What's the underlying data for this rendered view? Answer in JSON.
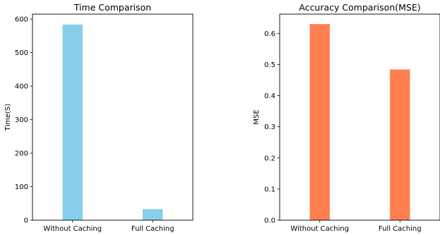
{
  "chart_data": [
    {
      "type": "bar",
      "title": "Time Comparison",
      "xlabel": "",
      "ylabel": "Time(S)",
      "categories": [
        "Without Caching",
        "Full Caching"
      ],
      "values": [
        584,
        33
      ],
      "ylim": [
        0,
        615
      ],
      "yticks": [
        0,
        100,
        200,
        300,
        400,
        500,
        600
      ],
      "ytick_labels": [
        "0",
        "100",
        "200",
        "300",
        "400",
        "500",
        "600"
      ],
      "color": "#87CEEB",
      "grid": false
    },
    {
      "type": "bar",
      "title": "Accuracy Comparison(MSE)",
      "xlabel": "",
      "ylabel": "MSE",
      "categories": [
        "Without Caching",
        "Full Caching"
      ],
      "values": [
        0.63,
        0.484
      ],
      "ylim": [
        0,
        0.662
      ],
      "yticks": [
        0.0,
        0.1,
        0.2,
        0.3,
        0.4,
        0.5,
        0.6
      ],
      "ytick_labels": [
        "0.0",
        "0.1",
        "0.2",
        "0.3",
        "0.4",
        "0.5",
        "0.6"
      ],
      "color": "#FF7F50",
      "grid": false
    }
  ]
}
